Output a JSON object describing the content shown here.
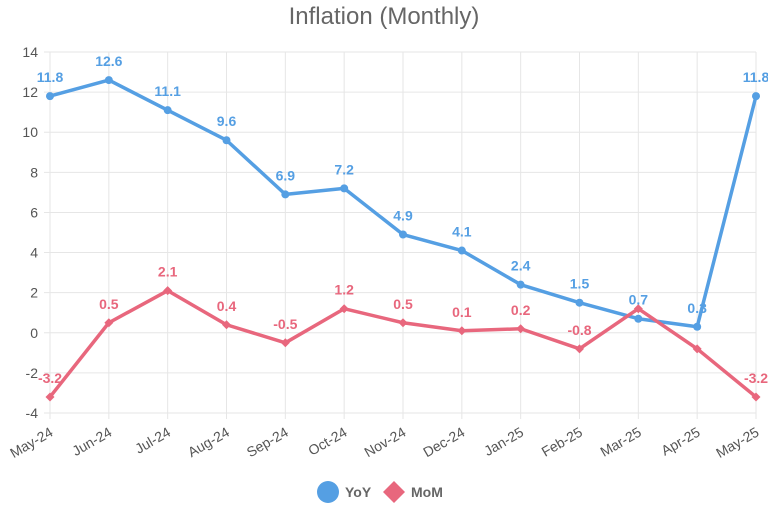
{
  "chart_data": {
    "type": "line",
    "title": "Inflation (Monthly)",
    "xlabel": "",
    "ylabel": "",
    "ylim": [
      -4,
      14
    ],
    "yticks": [
      -4,
      -2,
      0,
      2,
      4,
      6,
      8,
      10,
      12,
      14
    ],
    "categories": [
      "May-24",
      "Jun-24",
      "Jul-24",
      "Aug-24",
      "Sep-24",
      "Oct-24",
      "Nov-24",
      "Dec-24",
      "Jan-25",
      "Feb-25",
      "Mar-25",
      "Apr-25",
      "May-25"
    ],
    "series": [
      {
        "name": "YoY",
        "color": "#559fe3",
        "marker": "circle",
        "values": [
          11.8,
          12.6,
          11.1,
          9.6,
          6.9,
          7.2,
          4.9,
          4.1,
          2.4,
          1.5,
          0.7,
          0.3,
          11.8
        ]
      },
      {
        "name": "MoM",
        "color": "#e8677d",
        "marker": "diamond",
        "values": [
          -3.2,
          0.5,
          2.1,
          0.4,
          -0.5,
          1.2,
          0.5,
          0.1,
          0.2,
          -0.8,
          1.2,
          -0.8,
          -3.2
        ],
        "labels": [
          "-3.2",
          "0.5",
          "2.1",
          "0.4",
          "-0.5",
          "1.2",
          "0.5",
          "0.1",
          "0.2",
          "-0.8",
          "",
          "",
          "-3.2"
        ]
      }
    ],
    "grid": true,
    "legend_position": "bottom"
  }
}
